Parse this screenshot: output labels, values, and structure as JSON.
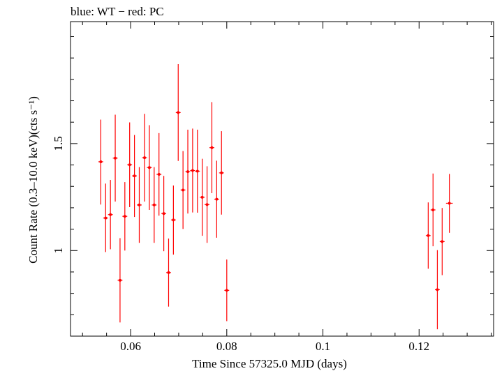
{
  "chart_data": {
    "type": "scatter",
    "title": "blue: WT − red: PC",
    "xlabel": "Time Since 57325.0 MJD (days)",
    "ylabel": "Count Rate (0.3–10.0 keV)(cts s⁻¹)",
    "xlim": [
      0.0475,
      0.1355
    ],
    "ylim": [
      0.6,
      2.07
    ],
    "x_ticks": [
      {
        "value": 0.06,
        "label": "0.06"
      },
      {
        "value": 0.08,
        "label": "0.08"
      },
      {
        "value": 0.1,
        "label": "0.1"
      },
      {
        "value": 0.12,
        "label": "0.12"
      }
    ],
    "y_ticks": [
      {
        "value": 1,
        "label": "1"
      },
      {
        "value": 1.5,
        "label": "1.5"
      }
    ],
    "grid": false,
    "series": [
      {
        "name": "PC",
        "color": "#ff0000",
        "points": [
          {
            "x": 0.0538,
            "y": 1.415,
            "xerr": 0.0005,
            "ylo": 1.215,
            "yhi": 1.612
          },
          {
            "x": 0.0548,
            "y": 1.152,
            "xerr": 0.0005,
            "ylo": 0.993,
            "yhi": 1.313
          },
          {
            "x": 0.0558,
            "y": 1.168,
            "xerr": 0.0005,
            "ylo": 1.006,
            "yhi": 1.33
          },
          {
            "x": 0.0568,
            "y": 1.432,
            "xerr": 0.0005,
            "ylo": 1.229,
            "yhi": 1.635
          },
          {
            "x": 0.0578,
            "y": 0.861,
            "xerr": 0.0005,
            "ylo": 0.664,
            "yhi": 1.058
          },
          {
            "x": 0.0588,
            "y": 1.16,
            "xerr": 0.0005,
            "ylo": 1.0,
            "yhi": 1.32
          },
          {
            "x": 0.0598,
            "y": 1.401,
            "xerr": 0.0005,
            "ylo": 1.203,
            "yhi": 1.599
          },
          {
            "x": 0.0608,
            "y": 1.349,
            "xerr": 0.0005,
            "ylo": 1.157,
            "yhi": 1.54
          },
          {
            "x": 0.0618,
            "y": 1.213,
            "xerr": 0.0005,
            "ylo": 1.036,
            "yhi": 1.39
          },
          {
            "x": 0.0629,
            "y": 1.434,
            "xerr": 0.0005,
            "ylo": 1.229,
            "yhi": 1.639
          },
          {
            "x": 0.0639,
            "y": 1.388,
            "xerr": 0.0005,
            "ylo": 1.19,
            "yhi": 1.586
          },
          {
            "x": 0.0649,
            "y": 1.213,
            "xerr": 0.0005,
            "ylo": 1.036,
            "yhi": 1.39
          },
          {
            "x": 0.0659,
            "y": 1.356,
            "xerr": 0.0005,
            "ylo": 1.163,
            "yhi": 1.549
          },
          {
            "x": 0.0669,
            "y": 1.173,
            "xerr": 0.0005,
            "ylo": 0.997,
            "yhi": 1.349
          },
          {
            "x": 0.0679,
            "y": 0.897,
            "xerr": 0.0005,
            "ylo": 0.738,
            "yhi": 1.056
          },
          {
            "x": 0.0689,
            "y": 1.143,
            "xerr": 0.0005,
            "ylo": 0.981,
            "yhi": 1.304
          },
          {
            "x": 0.0699,
            "y": 1.645,
            "xerr": 0.0005,
            "ylo": 1.419,
            "yhi": 1.871
          },
          {
            "x": 0.0709,
            "y": 1.283,
            "xerr": 0.0005,
            "ylo": 1.101,
            "yhi": 1.465
          },
          {
            "x": 0.0719,
            "y": 1.369,
            "xerr": 0.0005,
            "ylo": 1.173,
            "yhi": 1.565
          },
          {
            "x": 0.0729,
            "y": 1.374,
            "xerr": 0.0005,
            "ylo": 1.178,
            "yhi": 1.57
          },
          {
            "x": 0.0739,
            "y": 1.371,
            "xerr": 0.0005,
            "ylo": 1.177,
            "yhi": 1.565
          },
          {
            "x": 0.0749,
            "y": 1.249,
            "xerr": 0.0005,
            "ylo": 1.069,
            "yhi": 1.429
          },
          {
            "x": 0.0759,
            "y": 1.215,
            "xerr": 0.0005,
            "ylo": 1.036,
            "yhi": 1.394
          },
          {
            "x": 0.0769,
            "y": 1.481,
            "xerr": 0.0005,
            "ylo": 1.268,
            "yhi": 1.694
          },
          {
            "x": 0.0779,
            "y": 1.24,
            "xerr": 0.0005,
            "ylo": 1.06,
            "yhi": 1.42
          },
          {
            "x": 0.0789,
            "y": 1.363,
            "xerr": 0.0005,
            "ylo": 1.168,
            "yhi": 1.558
          },
          {
            "x": 0.08,
            "y": 0.814,
            "xerr": 0.0005,
            "ylo": 0.67,
            "yhi": 0.958
          },
          {
            "x": 0.1219,
            "y": 1.07,
            "xerr": 0.0005,
            "ylo": 0.915,
            "yhi": 1.225
          },
          {
            "x": 0.1229,
            "y": 1.19,
            "xerr": 0.0005,
            "ylo": 1.02,
            "yhi": 1.36
          },
          {
            "x": 0.1238,
            "y": 0.817,
            "xerr": 0.0005,
            "ylo": 0.632,
            "yhi": 1.002
          },
          {
            "x": 0.1248,
            "y": 1.042,
            "xerr": 0.0005,
            "ylo": 0.885,
            "yhi": 1.199
          },
          {
            "x": 0.1263,
            "y": 1.221,
            "xerr": 0.0007,
            "ylo": 1.083,
            "yhi": 1.358
          }
        ]
      }
    ]
  }
}
